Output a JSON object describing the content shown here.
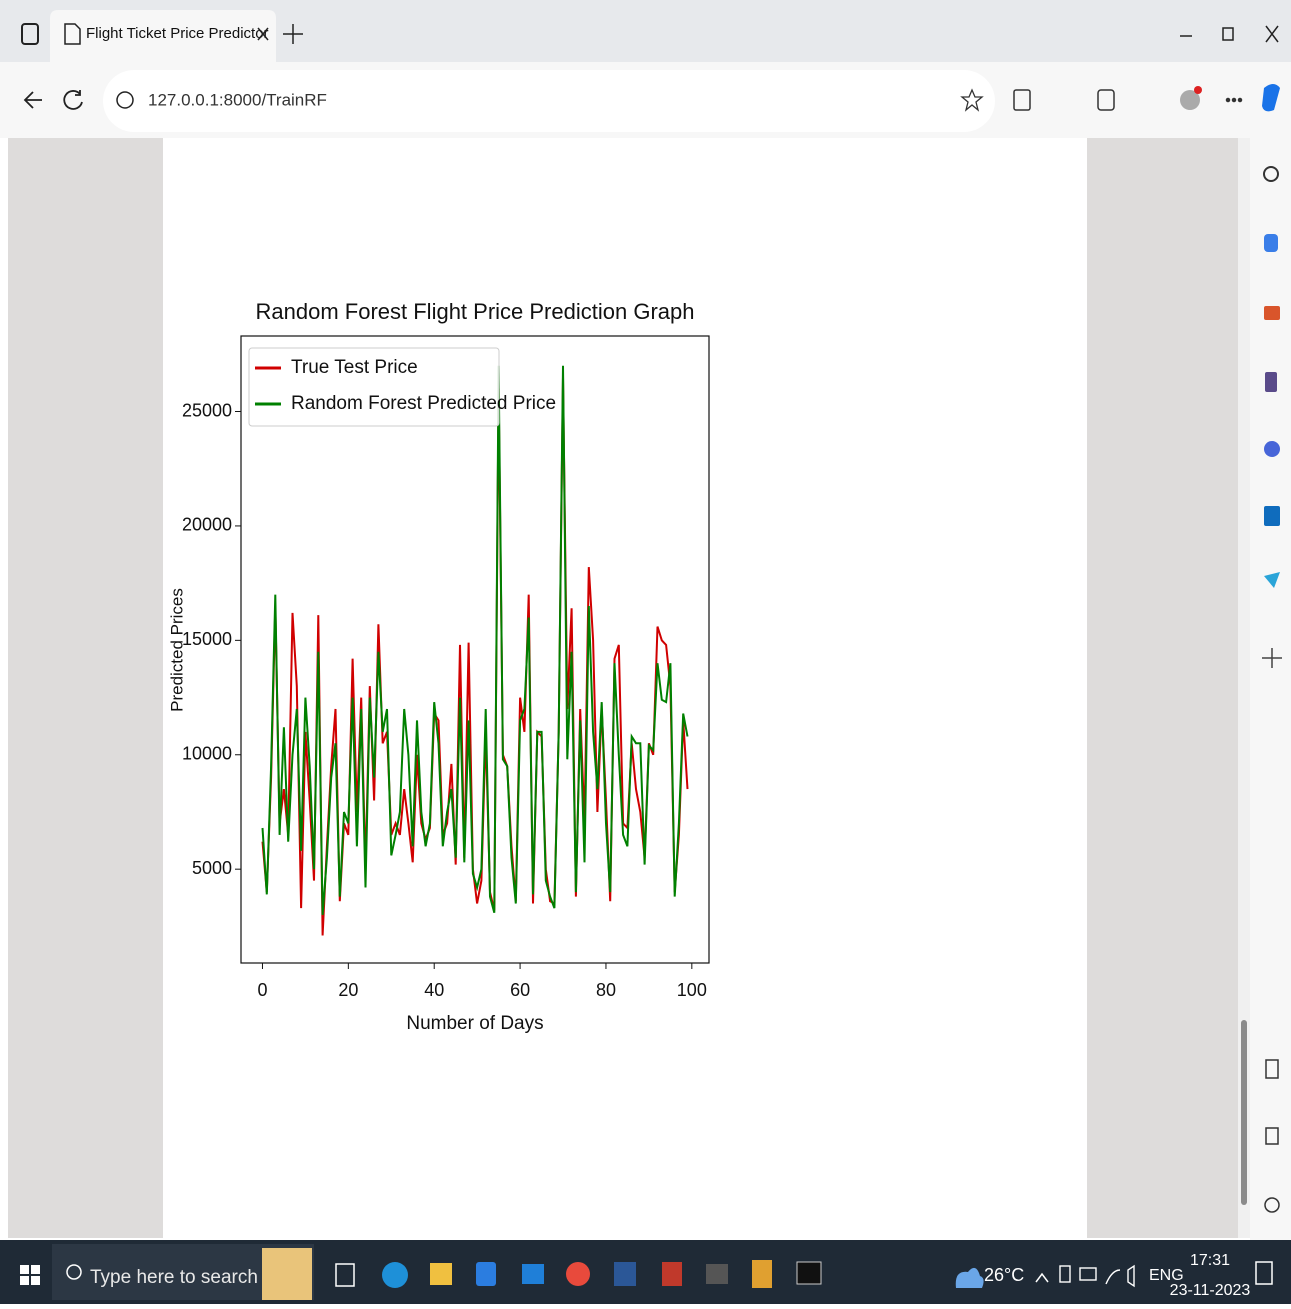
{
  "browser": {
    "tab_title": "Flight Ticket Price Predictor",
    "url": "127.0.0.1:8000/TrainRF"
  },
  "taskbar": {
    "search": "Type here to search",
    "weather": "26°C",
    "language": "ENG",
    "time": "17:31",
    "date": "23-11-2023"
  },
  "chart_data": {
    "type": "line",
    "title": "Random Forest Flight Price Prediction Graph",
    "x_label": "Number of Days",
    "y_label": "Predicted Prices",
    "x": [
      0,
      1,
      2,
      3,
      4,
      5,
      6,
      7,
      8,
      9,
      10,
      11,
      12,
      13,
      14,
      15,
      16,
      17,
      18,
      19,
      20,
      21,
      22,
      23,
      24,
      25,
      26,
      27,
      28,
      29,
      30,
      31,
      32,
      33,
      34,
      35,
      36,
      37,
      38,
      39,
      40,
      41,
      42,
      43,
      44,
      45,
      46,
      47,
      48,
      49,
      50,
      51,
      52,
      53,
      54,
      55,
      56,
      57,
      58,
      59,
      60,
      61,
      62,
      63,
      64,
      65,
      66,
      67,
      68,
      69,
      70,
      71,
      72,
      73,
      74,
      75,
      76,
      77,
      78,
      79,
      80,
      81,
      82,
      83,
      84,
      85,
      86,
      87,
      88,
      89,
      90,
      91,
      92,
      93,
      94,
      95,
      96,
      97,
      98,
      99
    ],
    "series": [
      {
        "name": "True Test Price",
        "color": "#d00000",
        "values": [
          6200,
          4000,
          9000,
          16500,
          7000,
          8500,
          6500,
          16200,
          13000,
          3300,
          11000,
          8000,
          4500,
          16100,
          2100,
          6000,
          9500,
          12000,
          3600,
          7000,
          6500,
          14200,
          7500,
          12500,
          5000,
          13000,
          8000,
          15700,
          10500,
          11000,
          6500,
          7000,
          6500,
          8500,
          7000,
          5300,
          10000,
          7000,
          6300,
          6800,
          11800,
          11500,
          6500,
          7000,
          9600,
          5200,
          14800,
          5500,
          14900,
          5000,
          3500,
          4500,
          11000,
          4000,
          3200,
          26000,
          10000,
          9500,
          6000,
          3600,
          12500,
          11000,
          17000,
          3500,
          11000,
          10800,
          5000,
          3600,
          3500,
          11000,
          26500,
          12000,
          16400,
          3800,
          12000,
          7000,
          18200,
          15000,
          7500,
          12000,
          8000,
          3600,
          14200,
          14800,
          7000,
          6800,
          10500,
          8500,
          7500,
          5500,
          10500,
          10000,
          15600,
          15000,
          14800,
          13000,
          4000,
          6500,
          11500,
          8500
        ]
      },
      {
        "name": "Random Forest Predicted Price",
        "color": "#008000",
        "values": [
          6800,
          3900,
          9500,
          17000,
          6500,
          11200,
          6200,
          10000,
          12000,
          5800,
          12500,
          9500,
          5000,
          14500,
          3000,
          5500,
          9000,
          10500,
          3800,
          7500,
          7000,
          12500,
          6000,
          12000,
          4200,
          12500,
          9000,
          14500,
          11000,
          12000,
          5600,
          6500,
          7500,
          12000,
          10000,
          6000,
          11500,
          7500,
          6000,
          7000,
          12300,
          10500,
          6000,
          7500,
          8500,
          5500,
          12500,
          5300,
          11500,
          4800,
          4200,
          5000,
          12000,
          3800,
          3100,
          27000,
          9800,
          9500,
          5500,
          3500,
          11500,
          12000,
          16000,
          3900,
          11000,
          11000,
          4500,
          3800,
          3300,
          11000,
          27000,
          9800,
          14500,
          4000,
          11500,
          5300,
          16500,
          11000,
          8500,
          12300,
          7000,
          4000,
          14000,
          10000,
          6500,
          6000,
          10800,
          10500,
          10500,
          5200,
          10400,
          10200,
          14000,
          12400,
          12300,
          14000,
          3800,
          7000,
          11800,
          10800
        ]
      }
    ],
    "xlim": [
      -5,
      104
    ],
    "xticks": [
      0,
      20,
      40,
      60,
      80,
      100
    ],
    "ylim": [
      900,
      28300
    ],
    "yticks": [
      5000,
      10000,
      15000,
      20000,
      25000
    ],
    "legend": "upper left"
  }
}
